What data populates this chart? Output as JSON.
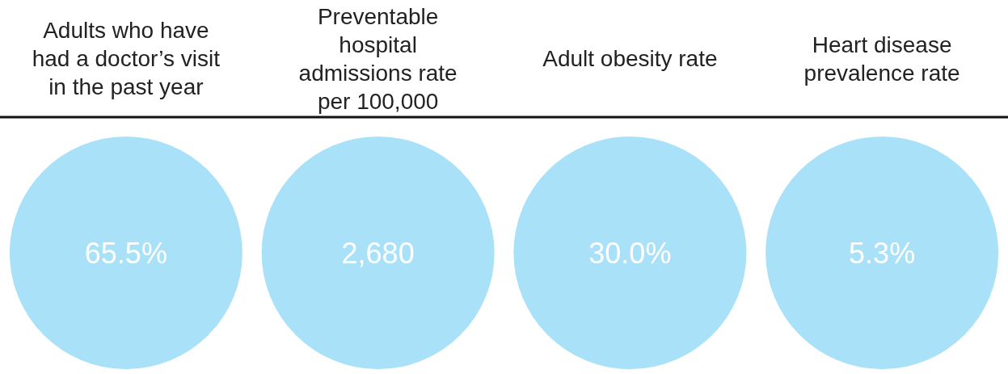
{
  "chart_data": {
    "type": "other",
    "categories": [
      "Adults who have\nhad a doctor’s visit\nin the past year",
      "Preventable\nhospital\nadmissions rate\nper 100,000",
      "Adult obesity rate",
      "Heart disease\nprevalence rate"
    ],
    "values": [
      65.5,
      2680,
      30.0,
      5.3
    ],
    "value_labels": [
      "65.5%",
      "2,680",
      "30.0%",
      "5.3%"
    ],
    "color": "#a8e1f8"
  }
}
